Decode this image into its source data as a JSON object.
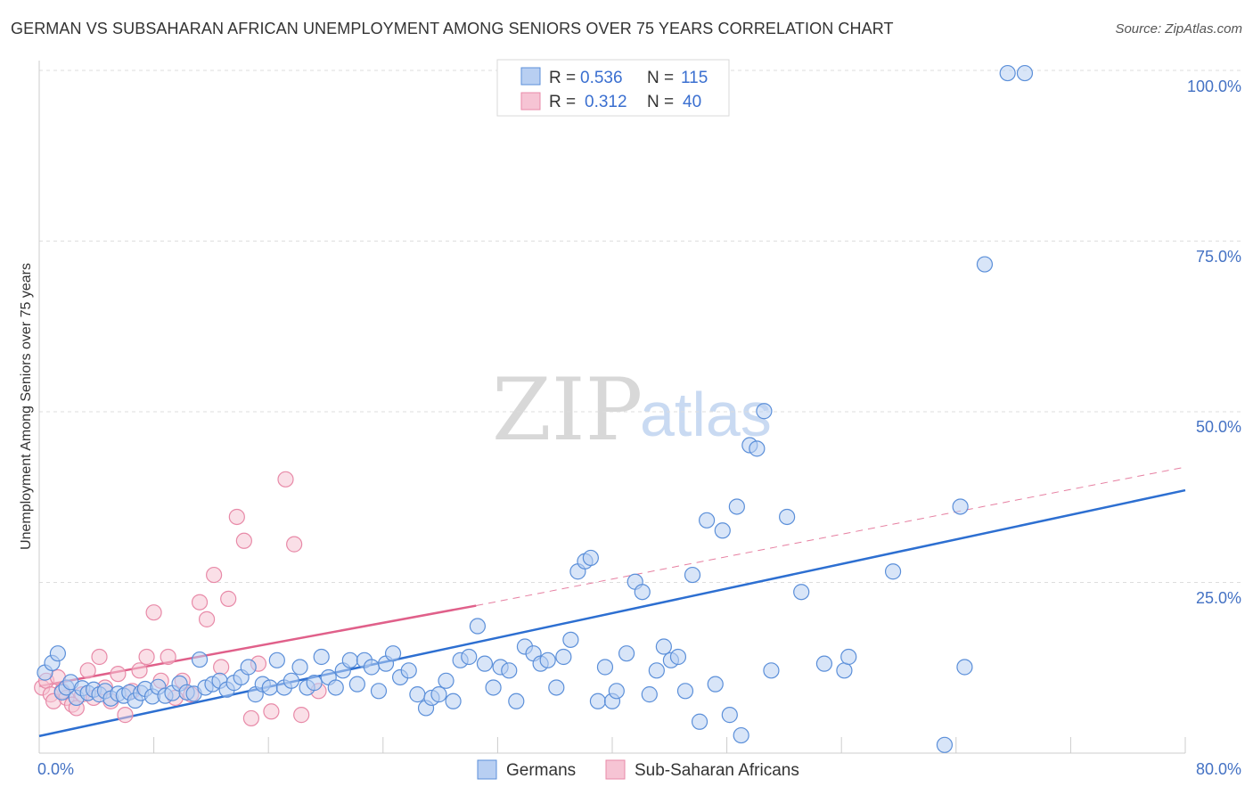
{
  "title": "GERMAN VS SUBSAHARAN AFRICAN UNEMPLOYMENT AMONG SENIORS OVER 75 YEARS CORRELATION CHART",
  "source": "Source: ZipAtlas.com",
  "watermark": {
    "zip": "ZIP",
    "atlas": "atlas"
  },
  "colors": {
    "blue_fill": "#b8cff2",
    "blue_stroke": "#5b8fd9",
    "blue_line": "#2d6fd1",
    "pink_fill": "#f6c4d4",
    "pink_stroke": "#e88aa8",
    "pink_line": "#e0608a",
    "grid": "#dddddd",
    "tick_text": "#4472c4"
  },
  "legend": {
    "r_label": "R =",
    "n_label": "N =",
    "entries": [
      {
        "r": "0.536",
        "n": "115"
      },
      {
        "r": "0.312",
        "n": "40"
      }
    ]
  },
  "chart_data": {
    "type": "scatter",
    "title": "GERMAN VS SUBSAHARAN AFRICAN UNEMPLOYMENT AMONG SENIORS OVER 75 YEARS CORRELATION CHART",
    "xlabel": "",
    "ylabel": "Unemployment Among Seniors over 75 years",
    "xlim": [
      0,
      80
    ],
    "ylim": [
      0,
      100
    ],
    "x_tick_labels": [
      "0.0%",
      "80.0%"
    ],
    "y_ticks": [
      25,
      50,
      75,
      100
    ],
    "y_tick_labels": [
      "25.0%",
      "50.0%",
      "75.0%",
      "100.0%"
    ],
    "grid": true,
    "legend_position": "top-center",
    "series": [
      {
        "name": "Germans",
        "r": 0.536,
        "n": 115,
        "trend": {
          "x0": 0,
          "y0": 2.5,
          "x1": 80,
          "y1": 38.5
        },
        "points": [
          [
            0.4,
            11.8
          ],
          [
            0.9,
            13.2
          ],
          [
            1.3,
            14.6
          ],
          [
            1.6,
            8.9
          ],
          [
            1.9,
            9.6
          ],
          [
            2.2,
            10.4
          ],
          [
            2.6,
            8.1
          ],
          [
            3.0,
            9.5
          ],
          [
            3.4,
            8.8
          ],
          [
            3.8,
            9.3
          ],
          [
            4.2,
            8.6
          ],
          [
            4.6,
            9.1
          ],
          [
            5.0,
            8.0
          ],
          [
            5.5,
            8.7
          ],
          [
            5.9,
            8.4
          ],
          [
            6.3,
            8.9
          ],
          [
            6.7,
            7.7
          ],
          [
            7.1,
            8.8
          ],
          [
            7.4,
            9.4
          ],
          [
            7.9,
            8.3
          ],
          [
            8.3,
            9.7
          ],
          [
            8.8,
            8.4
          ],
          [
            9.3,
            8.8
          ],
          [
            9.8,
            10.2
          ],
          [
            10.3,
            8.9
          ],
          [
            10.8,
            8.7
          ],
          [
            11.2,
            13.7
          ],
          [
            11.6,
            9.6
          ],
          [
            12.1,
            10.1
          ],
          [
            12.6,
            10.6
          ],
          [
            13.1,
            9.3
          ],
          [
            13.6,
            10.3
          ],
          [
            14.1,
            11.1
          ],
          [
            14.6,
            12.6
          ],
          [
            15.1,
            8.6
          ],
          [
            15.6,
            10.1
          ],
          [
            16.1,
            9.6
          ],
          [
            16.6,
            13.6
          ],
          [
            17.1,
            9.6
          ],
          [
            17.6,
            10.6
          ],
          [
            18.2,
            12.6
          ],
          [
            18.7,
            9.6
          ],
          [
            19.2,
            10.3
          ],
          [
            19.7,
            14.1
          ],
          [
            20.2,
            11.1
          ],
          [
            20.7,
            9.6
          ],
          [
            21.2,
            12.1
          ],
          [
            21.7,
            13.6
          ],
          [
            22.2,
            10.1
          ],
          [
            22.7,
            13.6
          ],
          [
            23.2,
            12.6
          ],
          [
            23.7,
            9.1
          ],
          [
            24.2,
            13.1
          ],
          [
            24.7,
            14.6
          ],
          [
            25.2,
            11.1
          ],
          [
            25.8,
            12.1
          ],
          [
            26.4,
            8.6
          ],
          [
            27.0,
            6.6
          ],
          [
            27.4,
            8.1
          ],
          [
            27.9,
            8.6
          ],
          [
            28.4,
            10.6
          ],
          [
            28.9,
            7.6
          ],
          [
            29.4,
            13.6
          ],
          [
            30.0,
            14.1
          ],
          [
            30.6,
            18.6
          ],
          [
            31.1,
            13.1
          ],
          [
            31.7,
            9.6
          ],
          [
            32.2,
            12.6
          ],
          [
            32.8,
            12.1
          ],
          [
            33.3,
            7.6
          ],
          [
            33.9,
            15.6
          ],
          [
            34.5,
            14.6
          ],
          [
            35.0,
            13.1
          ],
          [
            35.5,
            13.6
          ],
          [
            36.1,
            9.6
          ],
          [
            36.6,
            14.1
          ],
          [
            37.1,
            16.6
          ],
          [
            37.6,
            26.6
          ],
          [
            38.1,
            28.1
          ],
          [
            38.5,
            28.6
          ],
          [
            39.0,
            7.6
          ],
          [
            39.5,
            12.6
          ],
          [
            40.0,
            7.6
          ],
          [
            40.3,
            9.1
          ],
          [
            41.0,
            14.6
          ],
          [
            41.6,
            25.1
          ],
          [
            42.1,
            23.6
          ],
          [
            42.6,
            8.6
          ],
          [
            43.1,
            12.1
          ],
          [
            43.6,
            15.6
          ],
          [
            44.1,
            13.6
          ],
          [
            44.6,
            14.1
          ],
          [
            45.1,
            9.1
          ],
          [
            45.6,
            26.1
          ],
          [
            46.1,
            4.6
          ],
          [
            46.6,
            34.1
          ],
          [
            47.2,
            10.1
          ],
          [
            47.7,
            32.6
          ],
          [
            48.2,
            5.6
          ],
          [
            48.7,
            36.1
          ],
          [
            49.0,
            2.6
          ],
          [
            49.6,
            45.1
          ],
          [
            50.1,
            44.6
          ],
          [
            51.1,
            12.1
          ],
          [
            52.2,
            34.6
          ],
          [
            53.2,
            23.6
          ],
          [
            54.8,
            13.1
          ],
          [
            56.2,
            12.1
          ],
          [
            56.5,
            14.1
          ],
          [
            59.6,
            26.6
          ],
          [
            63.2,
            1.2
          ],
          [
            64.3,
            36.1
          ],
          [
            64.6,
            12.6
          ],
          [
            66.0,
            71.6
          ],
          [
            67.6,
            99.6
          ],
          [
            68.8,
            99.6
          ],
          [
            50.6,
            50.1
          ]
        ]
      },
      {
        "name": "Sub-Saharan Africans",
        "r": 0.312,
        "n": 40,
        "trend": {
          "x0": 0,
          "y0": 9.8,
          "x1": 30.5,
          "y1": 21.6
        },
        "trend_dashed_extension": {
          "x0": 30.5,
          "y0": 21.6,
          "x1": 80,
          "y1": 41.9
        },
        "points": [
          [
            0.2,
            9.6
          ],
          [
            0.5,
            10.6
          ],
          [
            0.8,
            8.6
          ],
          [
            1.0,
            7.6
          ],
          [
            1.3,
            11.1
          ],
          [
            1.6,
            9.1
          ],
          [
            1.9,
            8.1
          ],
          [
            2.3,
            7.1
          ],
          [
            2.6,
            6.6
          ],
          [
            3.0,
            8.6
          ],
          [
            3.4,
            12.1
          ],
          [
            3.8,
            8.1
          ],
          [
            4.2,
            14.1
          ],
          [
            4.6,
            9.6
          ],
          [
            5.0,
            7.6
          ],
          [
            5.5,
            11.6
          ],
          [
            6.0,
            5.6
          ],
          [
            6.5,
            9.1
          ],
          [
            7.0,
            12.1
          ],
          [
            7.5,
            14.1
          ],
          [
            8.0,
            20.6
          ],
          [
            8.5,
            10.6
          ],
          [
            9.0,
            14.1
          ],
          [
            9.5,
            8.1
          ],
          [
            10.0,
            10.6
          ],
          [
            10.6,
            8.6
          ],
          [
            11.2,
            22.1
          ],
          [
            11.7,
            19.6
          ],
          [
            12.2,
            26.1
          ],
          [
            12.7,
            12.6
          ],
          [
            13.2,
            22.6
          ],
          [
            13.8,
            34.6
          ],
          [
            14.3,
            31.1
          ],
          [
            14.8,
            5.1
          ],
          [
            15.3,
            13.1
          ],
          [
            16.2,
            6.1
          ],
          [
            17.2,
            40.1
          ],
          [
            17.8,
            30.6
          ],
          [
            18.3,
            5.6
          ],
          [
            19.5,
            9.1
          ]
        ]
      }
    ]
  },
  "bottom_legend": [
    {
      "label": "Germans"
    },
    {
      "label": "Sub-Saharan Africans"
    }
  ]
}
